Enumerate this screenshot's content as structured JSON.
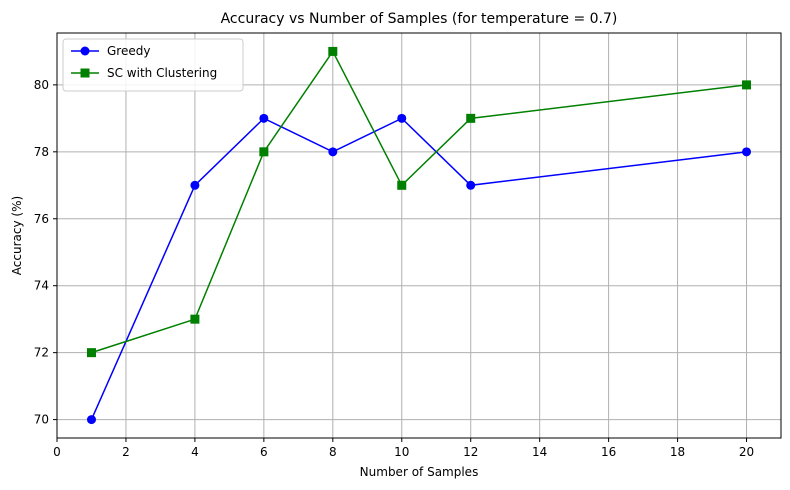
{
  "chart_data": {
    "type": "line",
    "title": "Accuracy vs Number of Samples (for temperature = 0.7)",
    "xlabel": "Number of Samples",
    "ylabel": "Accuracy (%)",
    "xlim": [
      0,
      21
    ],
    "ylim": [
      69.45,
      81.55
    ],
    "xticks": [
      0,
      2,
      4,
      6,
      8,
      10,
      12,
      14,
      16,
      18,
      20
    ],
    "yticks": [
      70,
      72,
      74,
      76,
      78,
      80
    ],
    "grid": true,
    "legend_position": "top-left",
    "x": [
      1,
      4,
      6,
      8,
      10,
      12,
      20
    ],
    "series": [
      {
        "name": "Greedy",
        "values": [
          70,
          77,
          79,
          78,
          79,
          77,
          78
        ],
        "color": "#0000ff",
        "marker": "circle"
      },
      {
        "name": "SC with Clustering",
        "values": [
          72,
          73,
          78,
          81,
          77,
          79,
          80
        ],
        "color": "#008000",
        "marker": "square"
      }
    ]
  }
}
